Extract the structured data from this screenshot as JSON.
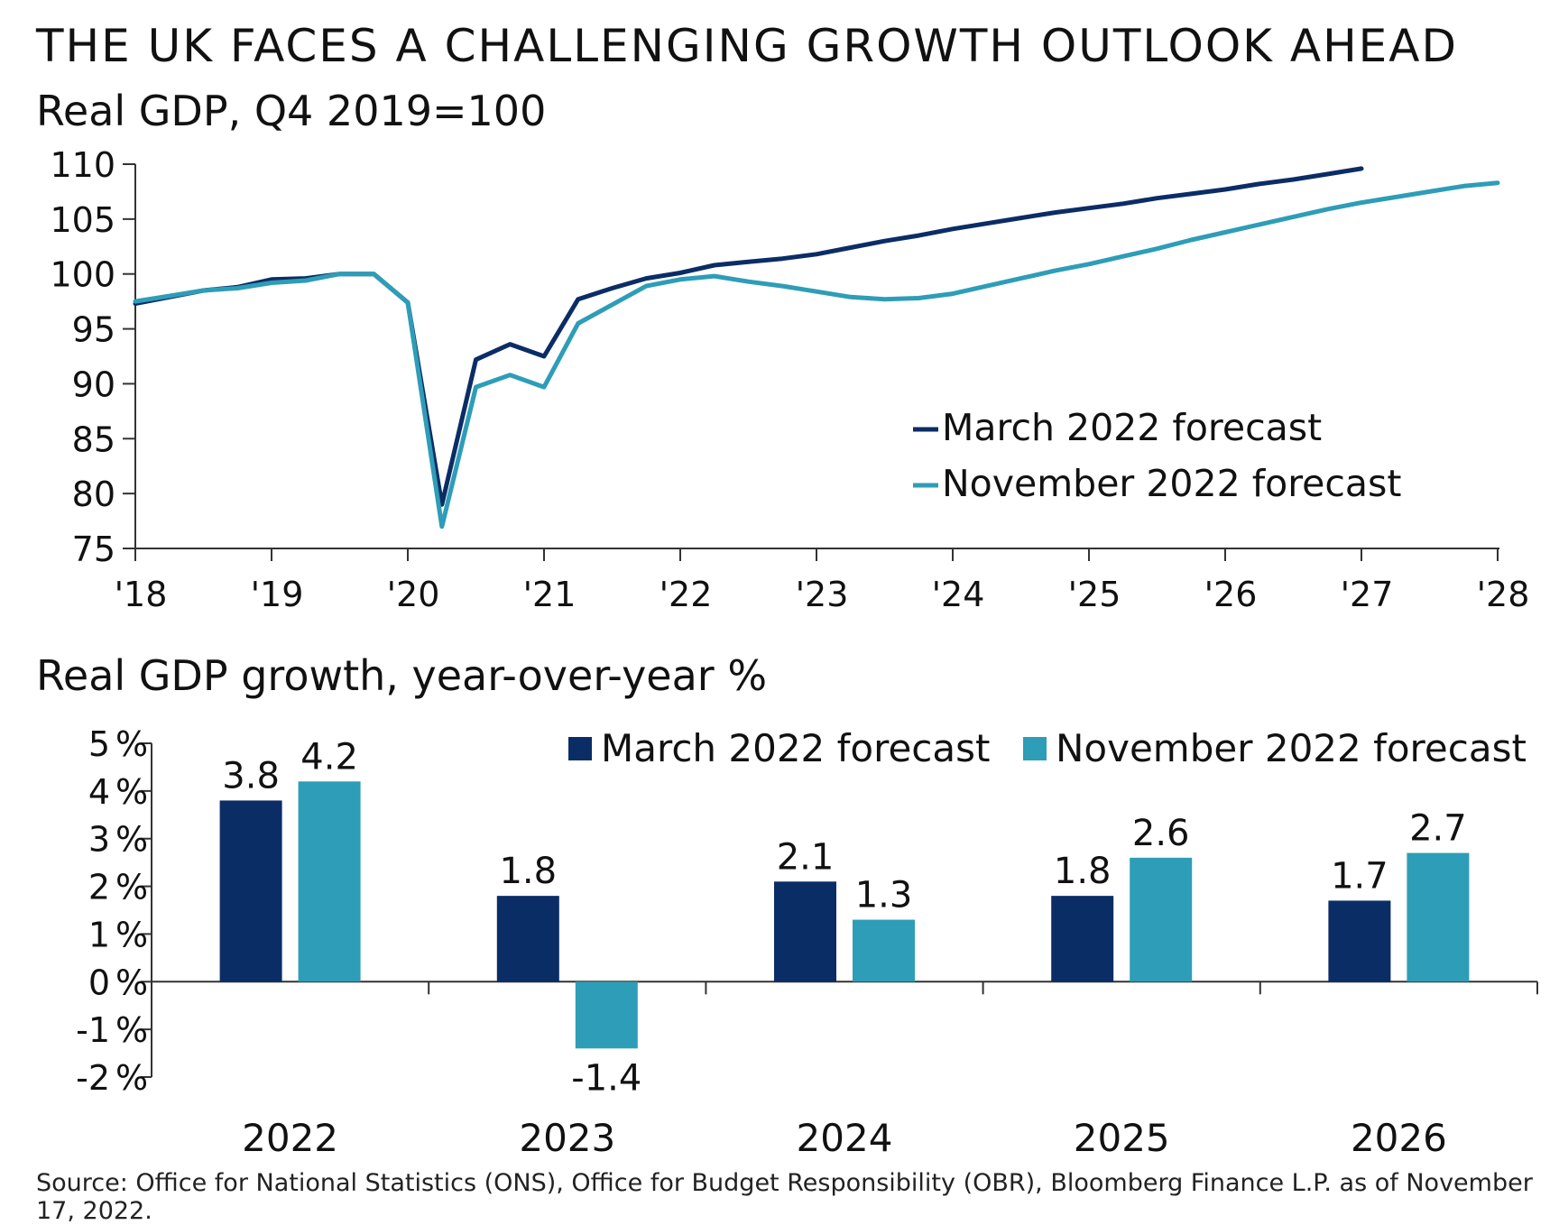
{
  "title": "THE UK FACES A CHALLENGING GROWTH OUTLOOK AHEAD",
  "source": "Source: Office for National Statistics (ONS), Office for Budget Responsibility (OBR), Bloomberg Finance L.P. as of November 17, 2022.",
  "colors": {
    "march": "#0b2d66",
    "november": "#2e9db7",
    "axis": "#333333"
  },
  "chart_data": [
    {
      "type": "line",
      "title": "Real GDP, Q4 2019=100",
      "ylim": [
        75,
        110
      ],
      "yticks": [
        "110",
        "105",
        "100",
        "95",
        "90",
        "85",
        "80",
        "75"
      ],
      "ytick_values": [
        110,
        105,
        100,
        95,
        90,
        85,
        80,
        75
      ],
      "xlim": [
        2018,
        2028
      ],
      "xticks": [
        "'18",
        "'19",
        "'20",
        "'21",
        "'22",
        "'23",
        "'24",
        "'25",
        "'26",
        "'27",
        "'28"
      ],
      "xtick_values": [
        2018,
        2019,
        2020,
        2021,
        2022,
        2023,
        2024,
        2025,
        2026,
        2027,
        2028
      ],
      "legend": "right",
      "series": [
        {
          "name": "March 2022 forecast",
          "color": "#0b2d66",
          "points": [
            [
              2018.0,
              97.3
            ],
            [
              2018.25,
              97.9
            ],
            [
              2018.5,
              98.5
            ],
            [
              2018.75,
              98.8
            ],
            [
              2019.0,
              99.5
            ],
            [
              2019.25,
              99.6
            ],
            [
              2019.5,
              100.0
            ],
            [
              2019.75,
              100.0
            ],
            [
              2020.0,
              97.4
            ],
            [
              2020.25,
              79.0
            ],
            [
              2020.5,
              92.2
            ],
            [
              2020.75,
              93.6
            ],
            [
              2021.0,
              92.5
            ],
            [
              2021.25,
              97.7
            ],
            [
              2021.5,
              98.7
            ],
            [
              2021.75,
              99.6
            ],
            [
              2022.0,
              100.1
            ],
            [
              2022.25,
              100.8
            ],
            [
              2022.5,
              101.1
            ],
            [
              2022.75,
              101.4
            ],
            [
              2023.0,
              101.8
            ],
            [
              2023.25,
              102.4
            ],
            [
              2023.5,
              103.0
            ],
            [
              2023.75,
              103.5
            ],
            [
              2024.0,
              104.1
            ],
            [
              2024.25,
              104.6
            ],
            [
              2024.5,
              105.1
            ],
            [
              2024.75,
              105.6
            ],
            [
              2025.0,
              106.0
            ],
            [
              2025.25,
              106.4
            ],
            [
              2025.5,
              106.9
            ],
            [
              2025.75,
              107.3
            ],
            [
              2026.0,
              107.7
            ],
            [
              2026.25,
              108.2
            ],
            [
              2026.5,
              108.6
            ],
            [
              2026.75,
              109.1
            ],
            [
              2027.0,
              109.6
            ]
          ]
        },
        {
          "name": "November 2022 forecast",
          "color": "#2e9db7",
          "points": [
            [
              2018.0,
              97.5
            ],
            [
              2018.25,
              98.0
            ],
            [
              2018.5,
              98.5
            ],
            [
              2018.75,
              98.7
            ],
            [
              2019.0,
              99.2
            ],
            [
              2019.25,
              99.4
            ],
            [
              2019.5,
              100.0
            ],
            [
              2019.75,
              100.0
            ],
            [
              2020.0,
              97.4
            ],
            [
              2020.25,
              77.0
            ],
            [
              2020.5,
              89.7
            ],
            [
              2020.75,
              90.8
            ],
            [
              2021.0,
              89.7
            ],
            [
              2021.25,
              95.5
            ],
            [
              2021.5,
              97.2
            ],
            [
              2021.75,
              98.9
            ],
            [
              2022.0,
              99.5
            ],
            [
              2022.25,
              99.8
            ],
            [
              2022.5,
              99.3
            ],
            [
              2022.75,
              98.9
            ],
            [
              2023.0,
              98.4
            ],
            [
              2023.25,
              97.9
            ],
            [
              2023.5,
              97.7
            ],
            [
              2023.75,
              97.8
            ],
            [
              2024.0,
              98.2
            ],
            [
              2024.25,
              98.9
            ],
            [
              2024.5,
              99.6
            ],
            [
              2024.75,
              100.3
            ],
            [
              2025.0,
              100.9
            ],
            [
              2025.25,
              101.6
            ],
            [
              2025.5,
              102.3
            ],
            [
              2025.75,
              103.1
            ],
            [
              2026.0,
              103.8
            ],
            [
              2026.25,
              104.5
            ],
            [
              2026.5,
              105.2
            ],
            [
              2026.75,
              105.9
            ],
            [
              2027.0,
              106.5
            ],
            [
              2027.25,
              107.0
            ],
            [
              2027.5,
              107.5
            ],
            [
              2027.75,
              108.0
            ],
            [
              2028.0,
              108.3
            ]
          ]
        }
      ]
    },
    {
      "type": "bar",
      "title": "Real GDP growth, year-over-year %",
      "ylim": [
        -2,
        5
      ],
      "yticks": [
        "5 %",
        "4 %",
        "3 %",
        "2 %",
        "1 %",
        "0 %",
        "-1 %",
        "-2 %"
      ],
      "ytick_values": [
        5,
        4,
        3,
        2,
        1,
        0,
        -1,
        -2
      ],
      "categories": [
        "2022",
        "2023",
        "2024",
        "2025",
        "2026"
      ],
      "legend": "top",
      "series": [
        {
          "name": "March 2022 forecast",
          "color": "#0b2d66",
          "values": [
            3.8,
            1.8,
            2.1,
            1.8,
            1.7
          ],
          "labels": [
            "3.8",
            "1.8",
            "2.1",
            "1.8",
            "1.7"
          ]
        },
        {
          "name": "November 2022 forecast",
          "color": "#2e9db7",
          "values": [
            4.2,
            -1.4,
            1.3,
            2.6,
            2.7
          ],
          "labels": [
            "4.2",
            "-1.4",
            "1.3",
            "2.6",
            "2.7"
          ]
        }
      ]
    }
  ]
}
